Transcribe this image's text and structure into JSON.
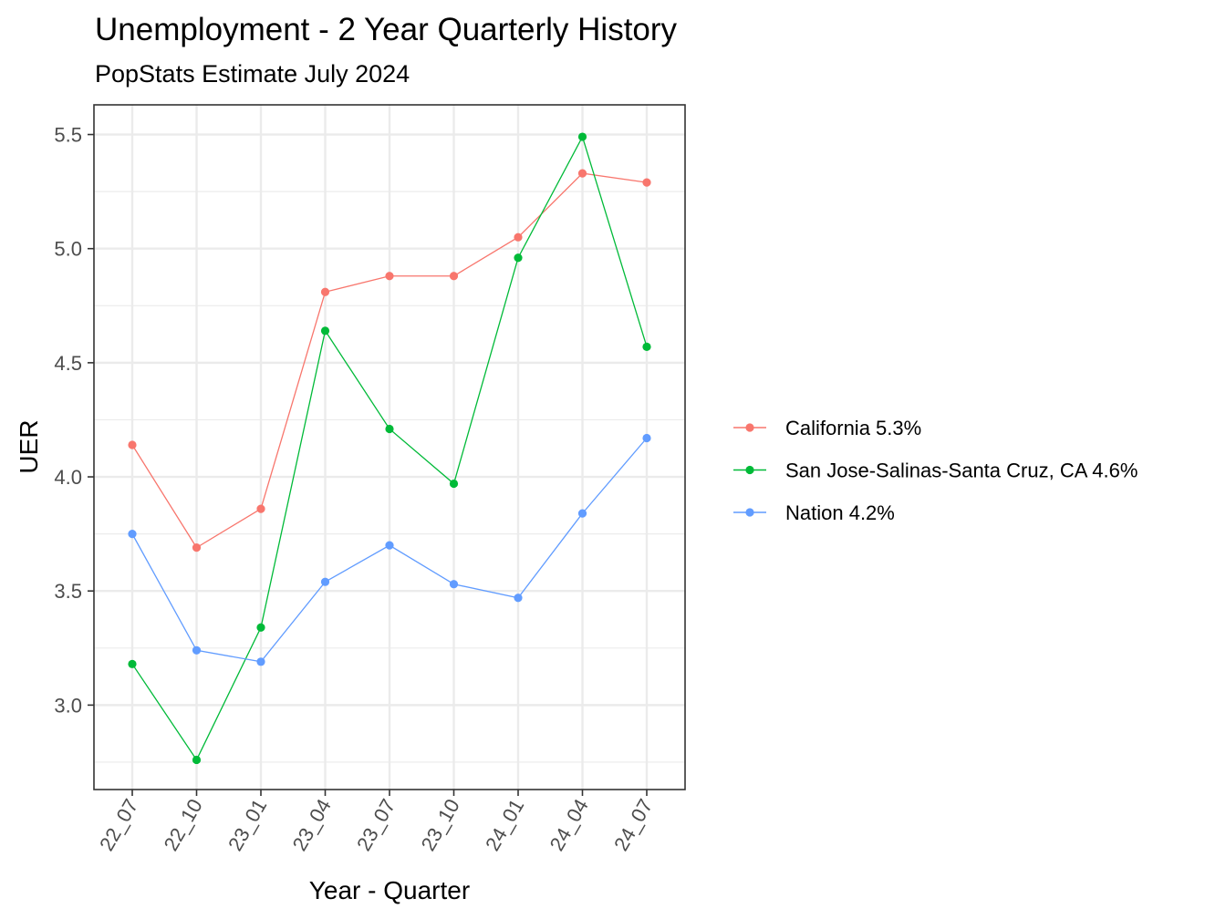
{
  "chart_data": {
    "type": "line",
    "title": "Unemployment - 2 Year Quarterly History",
    "subtitle": "PopStats Estimate July 2024",
    "xlabel": "Year - Quarter",
    "ylabel": "UER",
    "categories": [
      "22_07",
      "22_10",
      "23_01",
      "23_04",
      "23_07",
      "23_10",
      "24_01",
      "24_04",
      "24_07"
    ],
    "ylim": [
      2.63,
      5.63
    ],
    "yticks": [
      3.0,
      3.5,
      4.0,
      4.5,
      5.0,
      5.5
    ],
    "ytick_labels": [
      "3.0",
      "3.5",
      "4.0",
      "4.5",
      "5.0",
      "5.5"
    ],
    "grid": true,
    "legend_position": "right",
    "series": [
      {
        "name": "California 5.3%",
        "color": "#F8766D",
        "values": [
          4.14,
          3.69,
          3.86,
          4.81,
          4.88,
          4.88,
          5.05,
          5.33,
          5.29
        ]
      },
      {
        "name": "San Jose-Salinas-Santa Cruz, CA 4.6%",
        "color": "#00BA38",
        "values": [
          3.18,
          2.76,
          3.34,
          4.64,
          4.21,
          3.97,
          4.96,
          5.49,
          4.57
        ]
      },
      {
        "name": "Nation 4.2%",
        "color": "#619CFF",
        "values": [
          3.75,
          3.24,
          3.19,
          3.54,
          3.7,
          3.53,
          3.47,
          3.84,
          4.17
        ]
      }
    ]
  }
}
